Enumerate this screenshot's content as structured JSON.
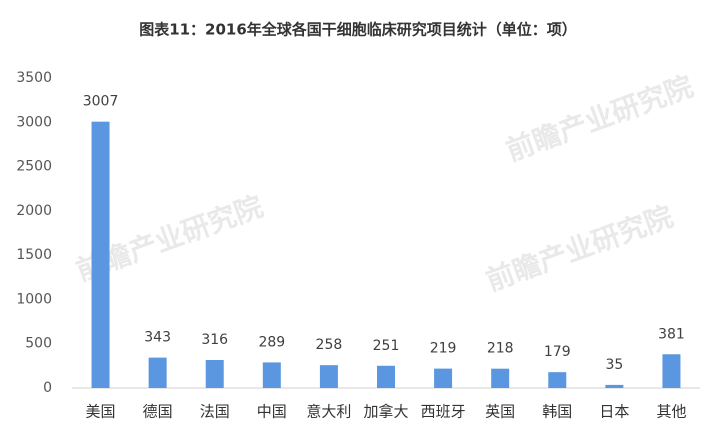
{
  "chart_data": {
    "type": "bar",
    "title": "图表11：2016年全球各国干细胞临床研究项目统计（单位：项）",
    "watermark": "前瞻产业研究院",
    "categories": [
      "美国",
      "德国",
      "法国",
      "中国",
      "意大利",
      "加拿大",
      "西班牙",
      "英国",
      "韩国",
      "日本",
      "其他"
    ],
    "values": [
      3007,
      343,
      316,
      289,
      258,
      251,
      219,
      218,
      179,
      35,
      381
    ],
    "color": "#5b97e0",
    "ylim": [
      0,
      3500
    ],
    "yticks": [
      0,
      500,
      1000,
      1500,
      2000,
      2500,
      3000,
      3500
    ],
    "grid": false
  }
}
